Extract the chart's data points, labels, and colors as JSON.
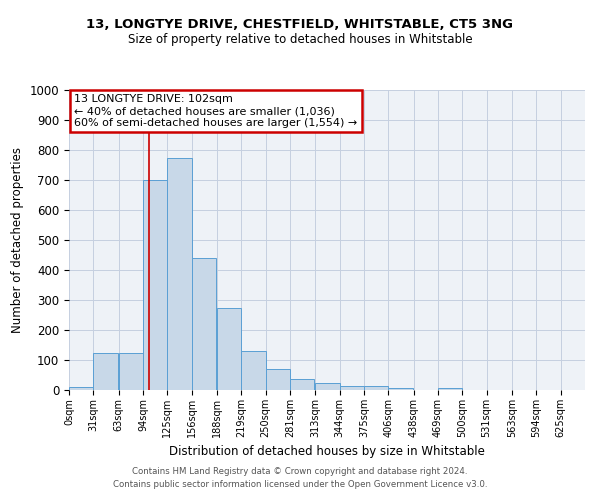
{
  "title1": "13, LONGTYE DRIVE, CHESTFIELD, WHITSTABLE, CT5 3NG",
  "title2": "Size of property relative to detached houses in Whitstable",
  "xlabel": "Distribution of detached houses by size in Whitstable",
  "ylabel": "Number of detached properties",
  "bin_labels": [
    "0sqm",
    "31sqm",
    "63sqm",
    "94sqm",
    "125sqm",
    "156sqm",
    "188sqm",
    "219sqm",
    "250sqm",
    "281sqm",
    "313sqm",
    "344sqm",
    "375sqm",
    "406sqm",
    "438sqm",
    "469sqm",
    "500sqm",
    "531sqm",
    "563sqm",
    "594sqm",
    "625sqm"
  ],
  "bar_heights": [
    10,
    125,
    125,
    700,
    775,
    440,
    275,
    130,
    70,
    37,
    22,
    12,
    12,
    8,
    0,
    8,
    0,
    0,
    0,
    0
  ],
  "bar_color": "#c8d8e8",
  "bar_edge_color": "#5a9fd4",
  "vertical_line_x": 102,
  "annotation_text": "13 LONGTYE DRIVE: 102sqm\n← 40% of detached houses are smaller (1,036)\n60% of semi-detached houses are larger (1,554) →",
  "annotation_box_color": "#ffffff",
  "annotation_box_edge_color": "#cc0000",
  "vline_color": "#cc0000",
  "ylim": [
    0,
    1000
  ],
  "xlim_min": 0,
  "xlim_max": 625,
  "bin_width": 31,
  "footer1": "Contains HM Land Registry data © Crown copyright and database right 2024.",
  "footer2": "Contains public sector information licensed under the Open Government Licence v3.0.",
  "bg_color": "#eef2f7",
  "grid_color": "#c5cfe0"
}
